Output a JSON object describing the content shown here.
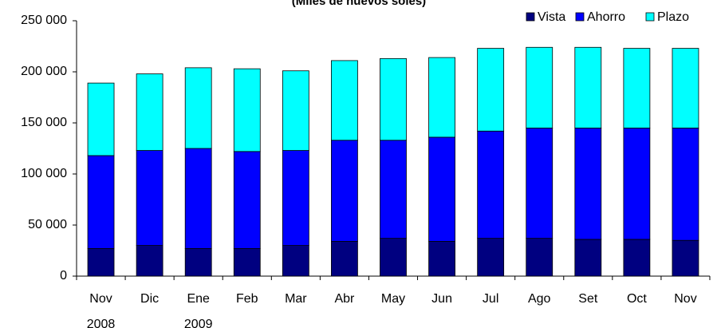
{
  "chart_data": {
    "type": "stacked-bar",
    "title": "(Miles de nuevos soles)",
    "categories": [
      [
        "Nov",
        "2008"
      ],
      [
        "Dic"
      ],
      [
        "Ene",
        "2009"
      ],
      [
        "Feb"
      ],
      [
        "Mar"
      ],
      [
        "Abr"
      ],
      [
        "May"
      ],
      [
        "Jun"
      ],
      [
        "Jul"
      ],
      [
        "Ago"
      ],
      [
        "Set"
      ],
      [
        "Oct"
      ],
      [
        "Nov"
      ]
    ],
    "series": [
      {
        "name": "Vista",
        "color": "#000080",
        "values": [
          27000,
          30000,
          27000,
          27000,
          30000,
          34000,
          37000,
          34000,
          37000,
          37000,
          36000,
          36000,
          35000
        ]
      },
      {
        "name": "Ahorro",
        "color": "#0000ff",
        "values": [
          91000,
          93000,
          98000,
          95000,
          93000,
          99000,
          96000,
          102000,
          105000,
          108000,
          109000,
          109000,
          110000
        ]
      },
      {
        "name": "Plazo",
        "color": "#00ffff",
        "values": [
          71000,
          75000,
          79000,
          81000,
          78000,
          78000,
          80000,
          78000,
          81000,
          79000,
          79000,
          78000,
          78000
        ]
      }
    ],
    "ylim": [
      0,
      250000
    ],
    "yticks": [
      0,
      {
        "value": 50000,
        "label": "50 000"
      },
      {
        "value": 100000,
        "label": "100 000"
      },
      {
        "value": 150000,
        "label": "150 000"
      },
      {
        "value": 200000,
        "label": "200 000"
      },
      {
        "value": 250000,
        "label": "250 000"
      }
    ],
    "legend": "top-right"
  }
}
